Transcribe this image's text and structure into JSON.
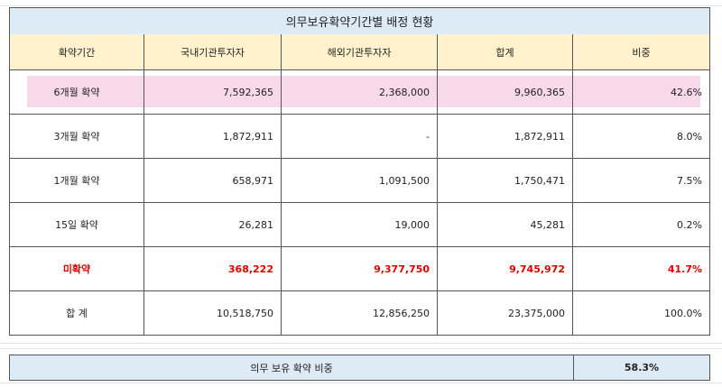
{
  "title": "의무보유확약기간별 배정 현황",
  "table": {
    "headers": [
      "확약기간",
      "국내기관투자자",
      "해외기관투자자",
      "합계",
      "비중"
    ],
    "rows": [
      [
        "6개월 확약",
        "7,592,365",
        "2,368,000",
        "9,960,365",
        "42.6%"
      ],
      [
        "3개월 확약",
        "1,872,911",
        "-",
        "1,872,911",
        "8.0%"
      ],
      [
        "1개월 확약",
        "658,971",
        "1,091,500",
        "1,750,471",
        "7.5%"
      ],
      [
        "15일 확약",
        "26,281",
        "19,000",
        "45,281",
        "0.2%"
      ],
      [
        "미확약",
        "368,222",
        "9,377,750",
        "9,745,972",
        "41.7%"
      ],
      [
        "합 계",
        "10,518,750",
        "12,856,250",
        "23,375,000",
        "100.0%"
      ]
    ]
  },
  "summary": {
    "label": "의무 보유 확약 비중",
    "value": "58.3%"
  }
}
